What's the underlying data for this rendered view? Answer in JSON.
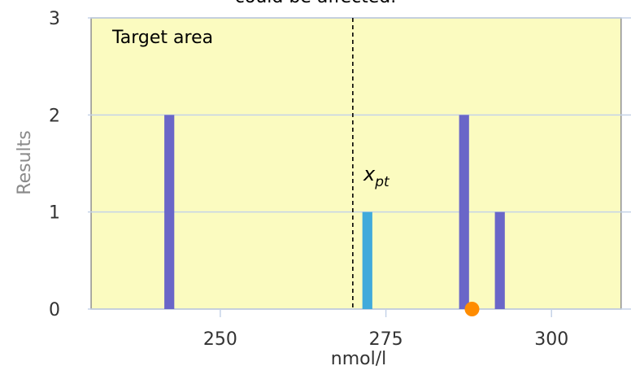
{
  "chart_data": {
    "type": "bar",
    "title": "",
    "top_text_partial": "could be affected.",
    "xlabel": "nmol/l",
    "ylabel": "Results",
    "xlim": [
      230,
      312
    ],
    "ylim": [
      0,
      3
    ],
    "x_ticks": [
      250,
      275,
      300
    ],
    "y_ticks": [
      0,
      1,
      2,
      3
    ],
    "grid": {
      "x": false,
      "y": true
    },
    "target_area": {
      "label": "Target area",
      "from": 230.5,
      "to": 310.5,
      "fill": "#fbfbc0",
      "border": "#909090"
    },
    "reference": {
      "label_main": "x",
      "label_sub": "pt",
      "x": 270,
      "style": "dashed"
    },
    "bar_width": 1.5,
    "bars": [
      {
        "x": 242.3,
        "value": 2,
        "color": "#6a66c8"
      },
      {
        "x": 272.2,
        "value": 1,
        "color": "#41aadb"
      },
      {
        "x": 286.8,
        "value": 2,
        "color": "#6a66c8"
      },
      {
        "x": 292.2,
        "value": 1,
        "color": "#6a66c8"
      }
    ],
    "marker": {
      "x": 288.0,
      "y": 0,
      "color": "#ff8c00"
    },
    "colors": {
      "grid": "#c5d3e8",
      "axis": "#c5d3e8"
    }
  }
}
